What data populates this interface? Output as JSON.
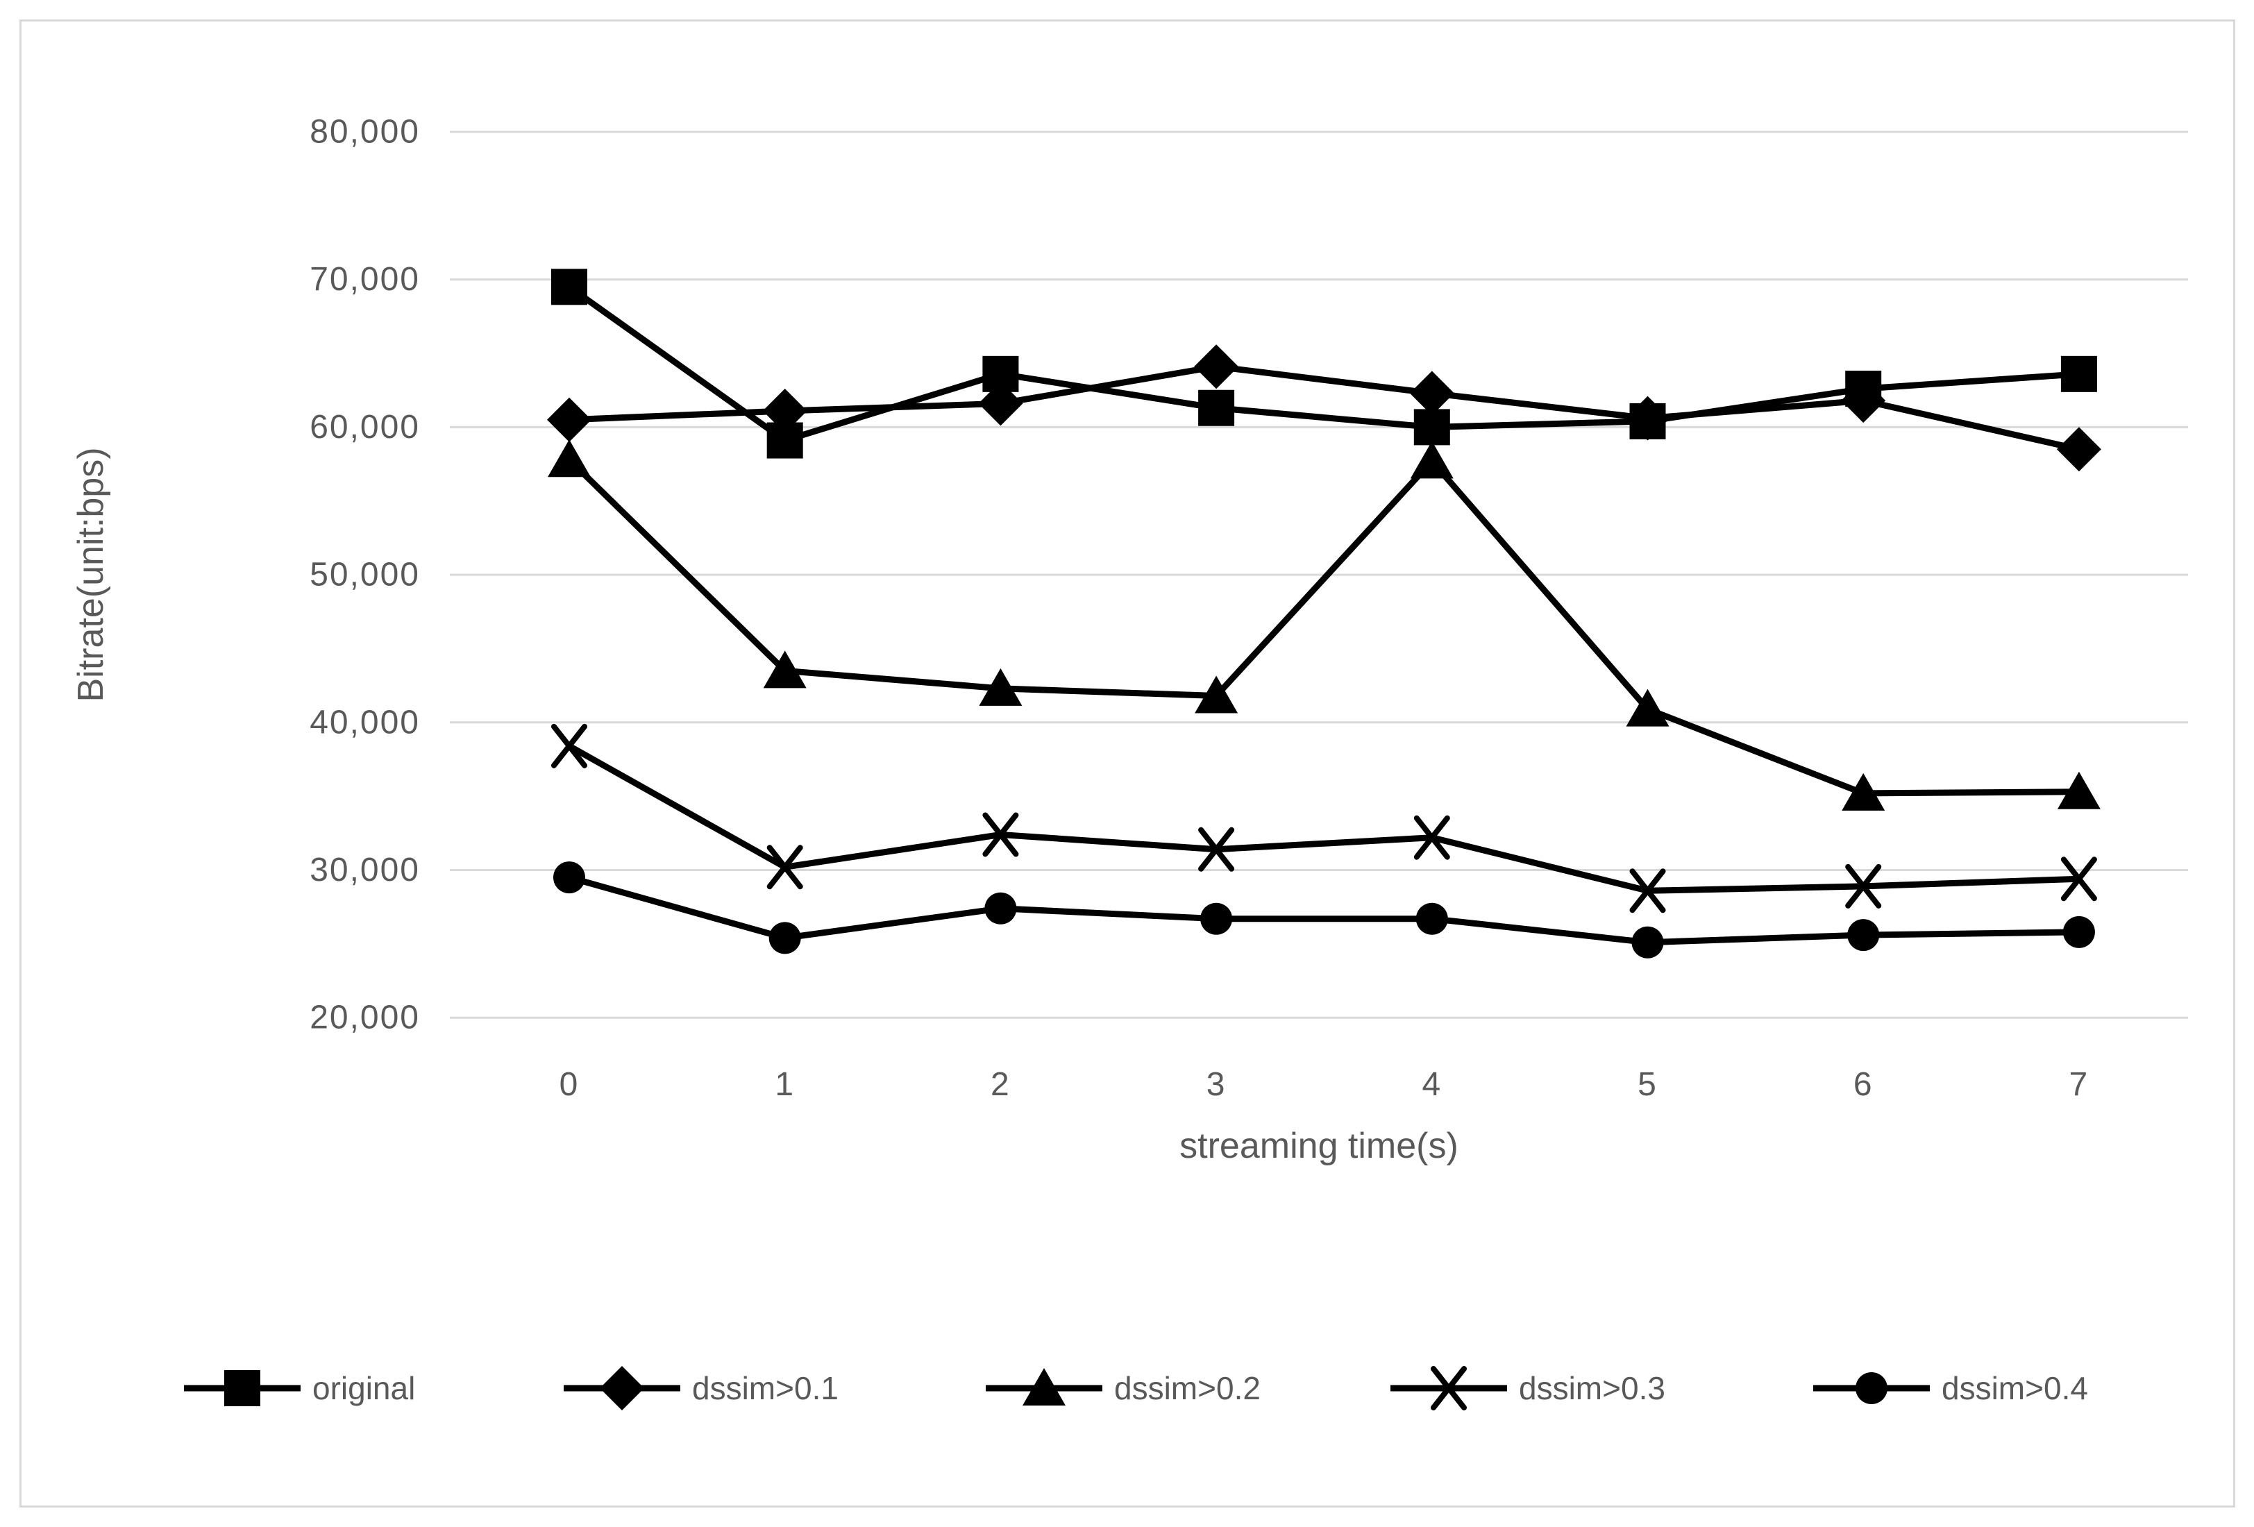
{
  "chart_data": {
    "type": "line",
    "title": "",
    "xlabel": "streaming time(s)",
    "ylabel": "Bitrate(unit:bps)",
    "categories": [
      "0",
      "1",
      "2",
      "3",
      "4",
      "5",
      "6",
      "7"
    ],
    "series": [
      {
        "name": "original",
        "marker": "square",
        "values": [
          69500,
          59100,
          63600,
          61300,
          60000,
          60400,
          62600,
          63600
        ]
      },
      {
        "name": "dssim>0.1",
        "marker": "diamond",
        "values": [
          60500,
          61100,
          61600,
          64100,
          62300,
          60600,
          61800,
          58500
        ]
      },
      {
        "name": "dssim>0.2",
        "marker": "triangle",
        "values": [
          57800,
          43500,
          42300,
          41800,
          57700,
          40900,
          35200,
          35300
        ]
      },
      {
        "name": "dssim>0.3",
        "marker": "x",
        "values": [
          38400,
          30200,
          32400,
          31400,
          32200,
          28600,
          28900,
          29400
        ]
      },
      {
        "name": "dssim>0.4",
        "marker": "circle",
        "values": [
          29500,
          25400,
          27400,
          26700,
          26700,
          25100,
          25600,
          25800
        ]
      }
    ],
    "ylim": [
      20000,
      80000
    ],
    "ytick_step": 10000,
    "ytick_labels": [
      "20,000",
      "30,000",
      "40,000",
      "50,000",
      "60,000",
      "70,000",
      "80,000"
    ],
    "grid": true,
    "legend_position": "bottom",
    "colors": {
      "series": "#000000",
      "text": "#595959",
      "gridline": "#d9d9d9",
      "frame_border": "#d9d9d9",
      "background": "#ffffff"
    }
  }
}
